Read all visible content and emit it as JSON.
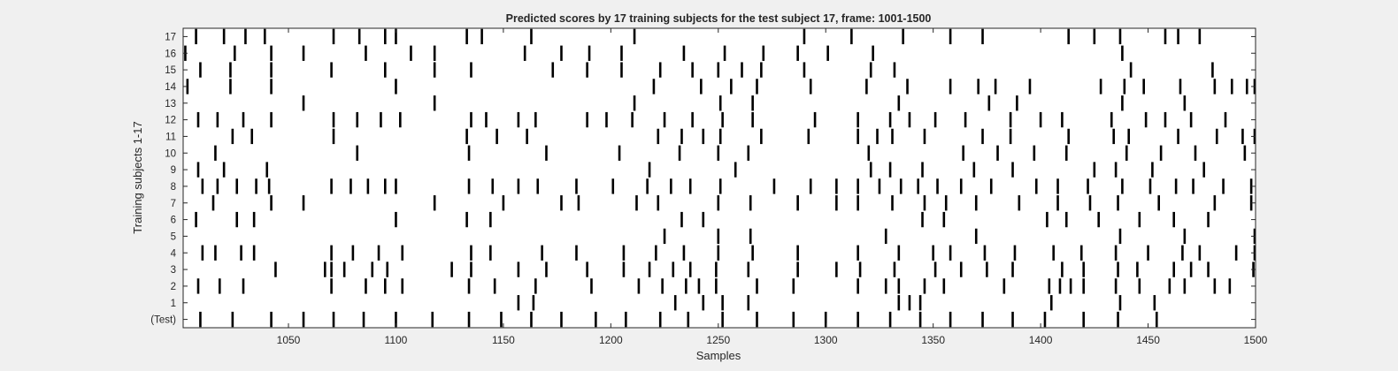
{
  "chart_data": {
    "type": "raster",
    "title": "Predicted scores by 17 training subjects for the test subject 17, frame: 1001-1500",
    "xlabel": "Samples",
    "ylabel": "Training subjects 1-17",
    "xlim": [
      1001,
      1500
    ],
    "xticks": [
      1050,
      1100,
      1150,
      1200,
      1250,
      1300,
      1350,
      1400,
      1450,
      1500
    ],
    "xtick_labels": [
      "1050",
      "1100",
      "1150",
      "1200",
      "1250",
      "1300",
      "1350",
      "1400",
      "1450",
      "1500"
    ],
    "yticks": [
      "(Test)",
      "1",
      "2",
      "3",
      "4",
      "5",
      "6",
      "7",
      "8",
      "9",
      "10",
      "11",
      "12",
      "13",
      "14",
      "15",
      "16",
      "17"
    ],
    "grid": false,
    "mark_color": "#000000",
    "rows": [
      {
        "label": "(Test)",
        "events": [
          1009,
          1024,
          1042,
          1057,
          1071,
          1085,
          1100,
          1117,
          1134,
          1149,
          1163,
          1177,
          1193,
          1207,
          1223,
          1236,
          1252,
          1268,
          1285,
          1300,
          1315,
          1330,
          1344,
          1358,
          1373,
          1387,
          1402,
          1420,
          1436,
          1454
        ]
      },
      {
        "label": "1",
        "events": [
          1157,
          1164,
          1230,
          1243,
          1252,
          1264,
          1334,
          1339,
          1344,
          1405,
          1437,
          1453
        ]
      },
      {
        "label": "2",
        "events": [
          1008,
          1018,
          1029,
          1070,
          1086,
          1095,
          1103,
          1134,
          1146,
          1165,
          1191,
          1213,
          1224,
          1235,
          1241,
          1249,
          1268,
          1285,
          1315,
          1328,
          1334,
          1346,
          1355,
          1383,
          1404,
          1409,
          1414,
          1420,
          1435,
          1446,
          1460,
          1467,
          1481,
          1488
        ]
      },
      {
        "label": "3",
        "events": [
          1044,
          1067,
          1070,
          1076,
          1089,
          1096,
          1126,
          1135,
          1157,
          1170,
          1189,
          1206,
          1218,
          1229,
          1237,
          1249,
          1264,
          1287,
          1305,
          1316,
          1332,
          1351,
          1363,
          1375,
          1387,
          1410,
          1420,
          1436,
          1445,
          1462,
          1470,
          1478,
          1499
        ]
      },
      {
        "label": "4",
        "events": [
          1010,
          1016,
          1028,
          1034,
          1070,
          1080,
          1092,
          1103,
          1135,
          1144,
          1168,
          1184,
          1206,
          1221,
          1234,
          1250,
          1266,
          1287,
          1315,
          1334,
          1350,
          1358,
          1374,
          1388,
          1406,
          1419,
          1435,
          1450,
          1466,
          1474,
          1491,
          1500
        ]
      },
      {
        "label": "5",
        "events": [
          1225,
          1250,
          1265,
          1328,
          1370,
          1437,
          1467,
          1500
        ]
      },
      {
        "label": "6",
        "events": [
          1007,
          1026,
          1034,
          1100,
          1133,
          1144,
          1233,
          1243,
          1345,
          1355,
          1403,
          1412,
          1427,
          1446,
          1462,
          1478
        ]
      },
      {
        "label": "7",
        "events": [
          1015,
          1042,
          1057,
          1118,
          1150,
          1177,
          1185,
          1212,
          1222,
          1250,
          1265,
          1287,
          1305,
          1315,
          1331,
          1346,
          1356,
          1370,
          1390,
          1408,
          1423,
          1436,
          1455,
          1481,
          1498
        ]
      },
      {
        "label": "8",
        "events": [
          1010,
          1017,
          1026,
          1035,
          1041,
          1070,
          1079,
          1087,
          1095,
          1100,
          1134,
          1145,
          1157,
          1166,
          1184,
          1201,
          1217,
          1228,
          1237,
          1251,
          1276,
          1293,
          1305,
          1315,
          1325,
          1335,
          1343,
          1352,
          1363,
          1377,
          1398,
          1408,
          1422,
          1438,
          1451,
          1463,
          1471,
          1485,
          1498
        ]
      },
      {
        "label": "9",
        "events": [
          1008,
          1020,
          1040,
          1218,
          1258,
          1321,
          1330,
          1345,
          1369,
          1387,
          1425,
          1435,
          1452,
          1476
        ]
      },
      {
        "label": "10",
        "events": [
          1016,
          1082,
          1134,
          1170,
          1204,
          1232,
          1250,
          1264,
          1320,
          1364,
          1380,
          1397,
          1412,
          1440,
          1456,
          1472,
          1495
        ]
      },
      {
        "label": "11",
        "events": [
          1024,
          1033,
          1071,
          1133,
          1147,
          1161,
          1222,
          1233,
          1243,
          1251,
          1270,
          1292,
          1315,
          1324,
          1331,
          1346,
          1373,
          1386,
          1413,
          1434,
          1441,
          1464,
          1482,
          1494,
          1500
        ]
      },
      {
        "label": "12",
        "events": [
          1008,
          1017,
          1029,
          1042,
          1071,
          1082,
          1093,
          1102,
          1135,
          1142,
          1157,
          1165,
          1189,
          1198,
          1210,
          1225,
          1238,
          1252,
          1266,
          1295,
          1315,
          1330,
          1339,
          1351,
          1365,
          1386,
          1400,
          1410,
          1433,
          1449,
          1458,
          1470,
          1486
        ]
      },
      {
        "label": "13",
        "events": [
          1057,
          1118,
          1211,
          1251,
          1266,
          1334,
          1376,
          1389,
          1438,
          1467
        ]
      },
      {
        "label": "14",
        "events": [
          1003,
          1023,
          1042,
          1100,
          1220,
          1242,
          1256,
          1268,
          1293,
          1319,
          1338,
          1358,
          1371,
          1379,
          1395,
          1428,
          1439,
          1448,
          1465,
          1481,
          1489,
          1496,
          1500
        ]
      },
      {
        "label": "15",
        "events": [
          1009,
          1023,
          1042,
          1070,
          1095,
          1118,
          1135,
          1173,
          1189,
          1205,
          1223,
          1238,
          1250,
          1261,
          1270,
          1290,
          1321,
          1332,
          1442,
          1480
        ]
      },
      {
        "label": "16",
        "events": [
          1002,
          1025,
          1042,
          1057,
          1086,
          1107,
          1118,
          1160,
          1177,
          1190,
          1205,
          1234,
          1253,
          1271,
          1287,
          1301,
          1322,
          1438
        ]
      },
      {
        "label": "17",
        "events": [
          1007,
          1020,
          1030,
          1039,
          1071,
          1083,
          1095,
          1100,
          1133,
          1140,
          1163,
          1211,
          1290,
          1312,
          1336,
          1358,
          1373,
          1413,
          1425,
          1437,
          1458,
          1464,
          1474
        ]
      }
    ]
  }
}
